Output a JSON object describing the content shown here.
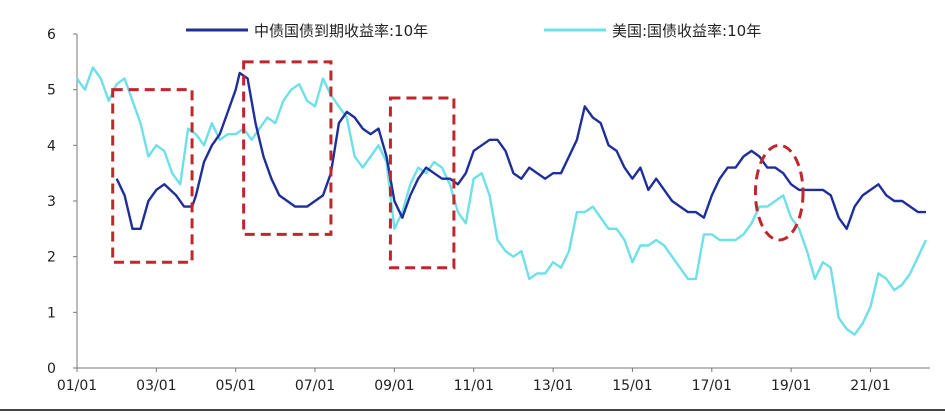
{
  "chart_data": {
    "type": "line",
    "title": "",
    "xlabel": "",
    "ylabel": "",
    "ylim": [
      0,
      6
    ],
    "yticks": [
      0,
      1,
      2,
      3,
      4,
      5,
      6
    ],
    "xrange": [
      2001.0,
      2022.5
    ],
    "xticks": [
      {
        "label": "01/01",
        "x": 2001.0
      },
      {
        "label": "03/01",
        "x": 2003.0
      },
      {
        "label": "05/01",
        "x": 2005.0
      },
      {
        "label": "07/01",
        "x": 2007.0
      },
      {
        "label": "09/01",
        "x": 2009.0
      },
      {
        "label": "11/01",
        "x": 2011.0
      },
      {
        "label": "13/01",
        "x": 2013.0
      },
      {
        "label": "15/01",
        "x": 2015.0
      },
      {
        "label": "17/01",
        "x": 2017.0
      },
      {
        "label": "19/01",
        "x": 2019.0
      },
      {
        "label": "21/01",
        "x": 2021.0
      }
    ],
    "grid": false,
    "legend_position": "top",
    "series": [
      {
        "name": "中债国债到期收益率:10年",
        "color": "#1f2f9a",
        "x": [
          2002.0,
          2002.2,
          2002.4,
          2002.6,
          2002.8,
          2003.0,
          2003.2,
          2003.5,
          2003.7,
          2003.9,
          2004.0,
          2004.2,
          2004.4,
          2004.6,
          2004.8,
          2005.0,
          2005.1,
          2005.3,
          2005.5,
          2005.7,
          2005.9,
          2006.1,
          2006.3,
          2006.5,
          2006.8,
          2007.0,
          2007.2,
          2007.4,
          2007.6,
          2007.8,
          2008.0,
          2008.2,
          2008.4,
          2008.6,
          2008.8,
          2009.0,
          2009.2,
          2009.4,
          2009.6,
          2009.8,
          2010.0,
          2010.2,
          2010.4,
          2010.6,
          2010.8,
          2011.0,
          2011.2,
          2011.4,
          2011.6,
          2011.8,
          2012.0,
          2012.2,
          2012.4,
          2012.6,
          2012.8,
          2013.0,
          2013.2,
          2013.4,
          2013.6,
          2013.8,
          2014.0,
          2014.2,
          2014.4,
          2014.6,
          2014.8,
          2015.0,
          2015.2,
          2015.4,
          2015.6,
          2015.8,
          2016.0,
          2016.2,
          2016.4,
          2016.6,
          2016.8,
          2017.0,
          2017.2,
          2017.4,
          2017.6,
          2017.8,
          2018.0,
          2018.2,
          2018.4,
          2018.6,
          2018.8,
          2019.0,
          2019.2,
          2019.4,
          2019.6,
          2019.8,
          2020.0,
          2020.2,
          2020.4,
          2020.6,
          2020.8,
          2021.0,
          2021.2,
          2021.4,
          2021.6,
          2021.8,
          2022.0,
          2022.2,
          2022.4
        ],
        "y": [
          3.4,
          3.1,
          2.5,
          2.5,
          3.0,
          3.2,
          3.3,
          3.1,
          2.9,
          2.9,
          3.1,
          3.7,
          4.0,
          4.2,
          4.6,
          5.0,
          5.3,
          5.2,
          4.4,
          3.8,
          3.4,
          3.1,
          3.0,
          2.9,
          2.9,
          3.0,
          3.1,
          3.5,
          4.4,
          4.6,
          4.5,
          4.3,
          4.2,
          4.3,
          3.8,
          3.0,
          2.7,
          3.1,
          3.4,
          3.6,
          3.5,
          3.4,
          3.4,
          3.3,
          3.5,
          3.9,
          4.0,
          4.1,
          4.1,
          3.9,
          3.5,
          3.4,
          3.6,
          3.5,
          3.4,
          3.5,
          3.5,
          3.8,
          4.1,
          4.7,
          4.5,
          4.4,
          4.0,
          3.9,
          3.6,
          3.4,
          3.6,
          3.2,
          3.4,
          3.2,
          3.0,
          2.9,
          2.8,
          2.8,
          2.7,
          3.1,
          3.4,
          3.6,
          3.6,
          3.8,
          3.9,
          3.8,
          3.6,
          3.6,
          3.5,
          3.3,
          3.2,
          3.2,
          3.2,
          3.2,
          3.1,
          2.7,
          2.5,
          2.9,
          3.1,
          3.2,
          3.3,
          3.1,
          3.0,
          3.0,
          2.9,
          2.8,
          2.8
        ]
      },
      {
        "name": "美国:国债收益率:10年",
        "color": "#6ee0e8",
        "x": [
          2001.0,
          2001.2,
          2001.4,
          2001.6,
          2001.8,
          2002.0,
          2002.2,
          2002.4,
          2002.6,
          2002.8,
          2003.0,
          2003.2,
          2003.4,
          2003.6,
          2003.8,
          2004.0,
          2004.2,
          2004.4,
          2004.6,
          2004.8,
          2005.0,
          2005.2,
          2005.4,
          2005.6,
          2005.8,
          2006.0,
          2006.2,
          2006.4,
          2006.6,
          2006.8,
          2007.0,
          2007.2,
          2007.4,
          2007.6,
          2007.8,
          2008.0,
          2008.2,
          2008.4,
          2008.6,
          2008.8,
          2009.0,
          2009.2,
          2009.4,
          2009.6,
          2009.8,
          2010.0,
          2010.2,
          2010.4,
          2010.6,
          2010.8,
          2011.0,
          2011.2,
          2011.4,
          2011.6,
          2011.8,
          2012.0,
          2012.2,
          2012.4,
          2012.6,
          2012.8,
          2013.0,
          2013.2,
          2013.4,
          2013.6,
          2013.8,
          2014.0,
          2014.2,
          2014.4,
          2014.6,
          2014.8,
          2015.0,
          2015.2,
          2015.4,
          2015.6,
          2015.8,
          2016.0,
          2016.2,
          2016.4,
          2016.6,
          2016.8,
          2017.0,
          2017.2,
          2017.4,
          2017.6,
          2017.8,
          2018.0,
          2018.2,
          2018.4,
          2018.6,
          2018.8,
          2019.0,
          2019.2,
          2019.4,
          2019.6,
          2019.8,
          2020.0,
          2020.2,
          2020.4,
          2020.6,
          2020.8,
          2021.0,
          2021.2,
          2021.4,
          2021.6,
          2021.8,
          2022.0,
          2022.2,
          2022.4
        ],
        "y": [
          5.2,
          5.0,
          5.4,
          5.2,
          4.8,
          5.1,
          5.2,
          4.8,
          4.4,
          3.8,
          4.0,
          3.9,
          3.5,
          3.3,
          4.3,
          4.2,
          4.0,
          4.4,
          4.1,
          4.2,
          4.2,
          4.3,
          4.1,
          4.3,
          4.5,
          4.4,
          4.8,
          5.0,
          5.1,
          4.8,
          4.7,
          5.2,
          4.9,
          4.7,
          4.5,
          3.8,
          3.6,
          3.8,
          4.0,
          3.7,
          2.5,
          2.8,
          3.3,
          3.6,
          3.5,
          3.7,
          3.6,
          3.3,
          2.8,
          2.6,
          3.4,
          3.5,
          3.1,
          2.3,
          2.1,
          2.0,
          2.1,
          1.6,
          1.7,
          1.7,
          1.9,
          1.8,
          2.1,
          2.8,
          2.8,
          2.9,
          2.7,
          2.5,
          2.5,
          2.3,
          1.9,
          2.2,
          2.2,
          2.3,
          2.2,
          2.0,
          1.8,
          1.6,
          1.6,
          2.4,
          2.4,
          2.3,
          2.3,
          2.3,
          2.4,
          2.6,
          2.9,
          2.9,
          3.0,
          3.1,
          2.7,
          2.5,
          2.1,
          1.6,
          1.9,
          1.8,
          0.9,
          0.7,
          0.6,
          0.8,
          1.1,
          1.7,
          1.6,
          1.4,
          1.5,
          1.7,
          2.0,
          2.3
        ]
      }
    ],
    "annotations": [
      {
        "shape": "rect",
        "style": "dashed",
        "color": "#c0272d",
        "x0": 2001.9,
        "x1": 2003.9,
        "y0": 1.9,
        "y1": 5.0
      },
      {
        "shape": "rect",
        "style": "dashed",
        "color": "#c0272d",
        "x0": 2005.2,
        "x1": 2007.4,
        "y0": 2.4,
        "y1": 5.5
      },
      {
        "shape": "rect",
        "style": "dashed",
        "color": "#c0272d",
        "x0": 2008.9,
        "x1": 2010.5,
        "y0": 1.8,
        "y1": 4.85
      },
      {
        "shape": "ellipse",
        "style": "dashed",
        "color": "#c0272d",
        "x0": 2018.1,
        "x1": 2019.3,
        "y0": 2.3,
        "y1": 4.0
      }
    ]
  }
}
